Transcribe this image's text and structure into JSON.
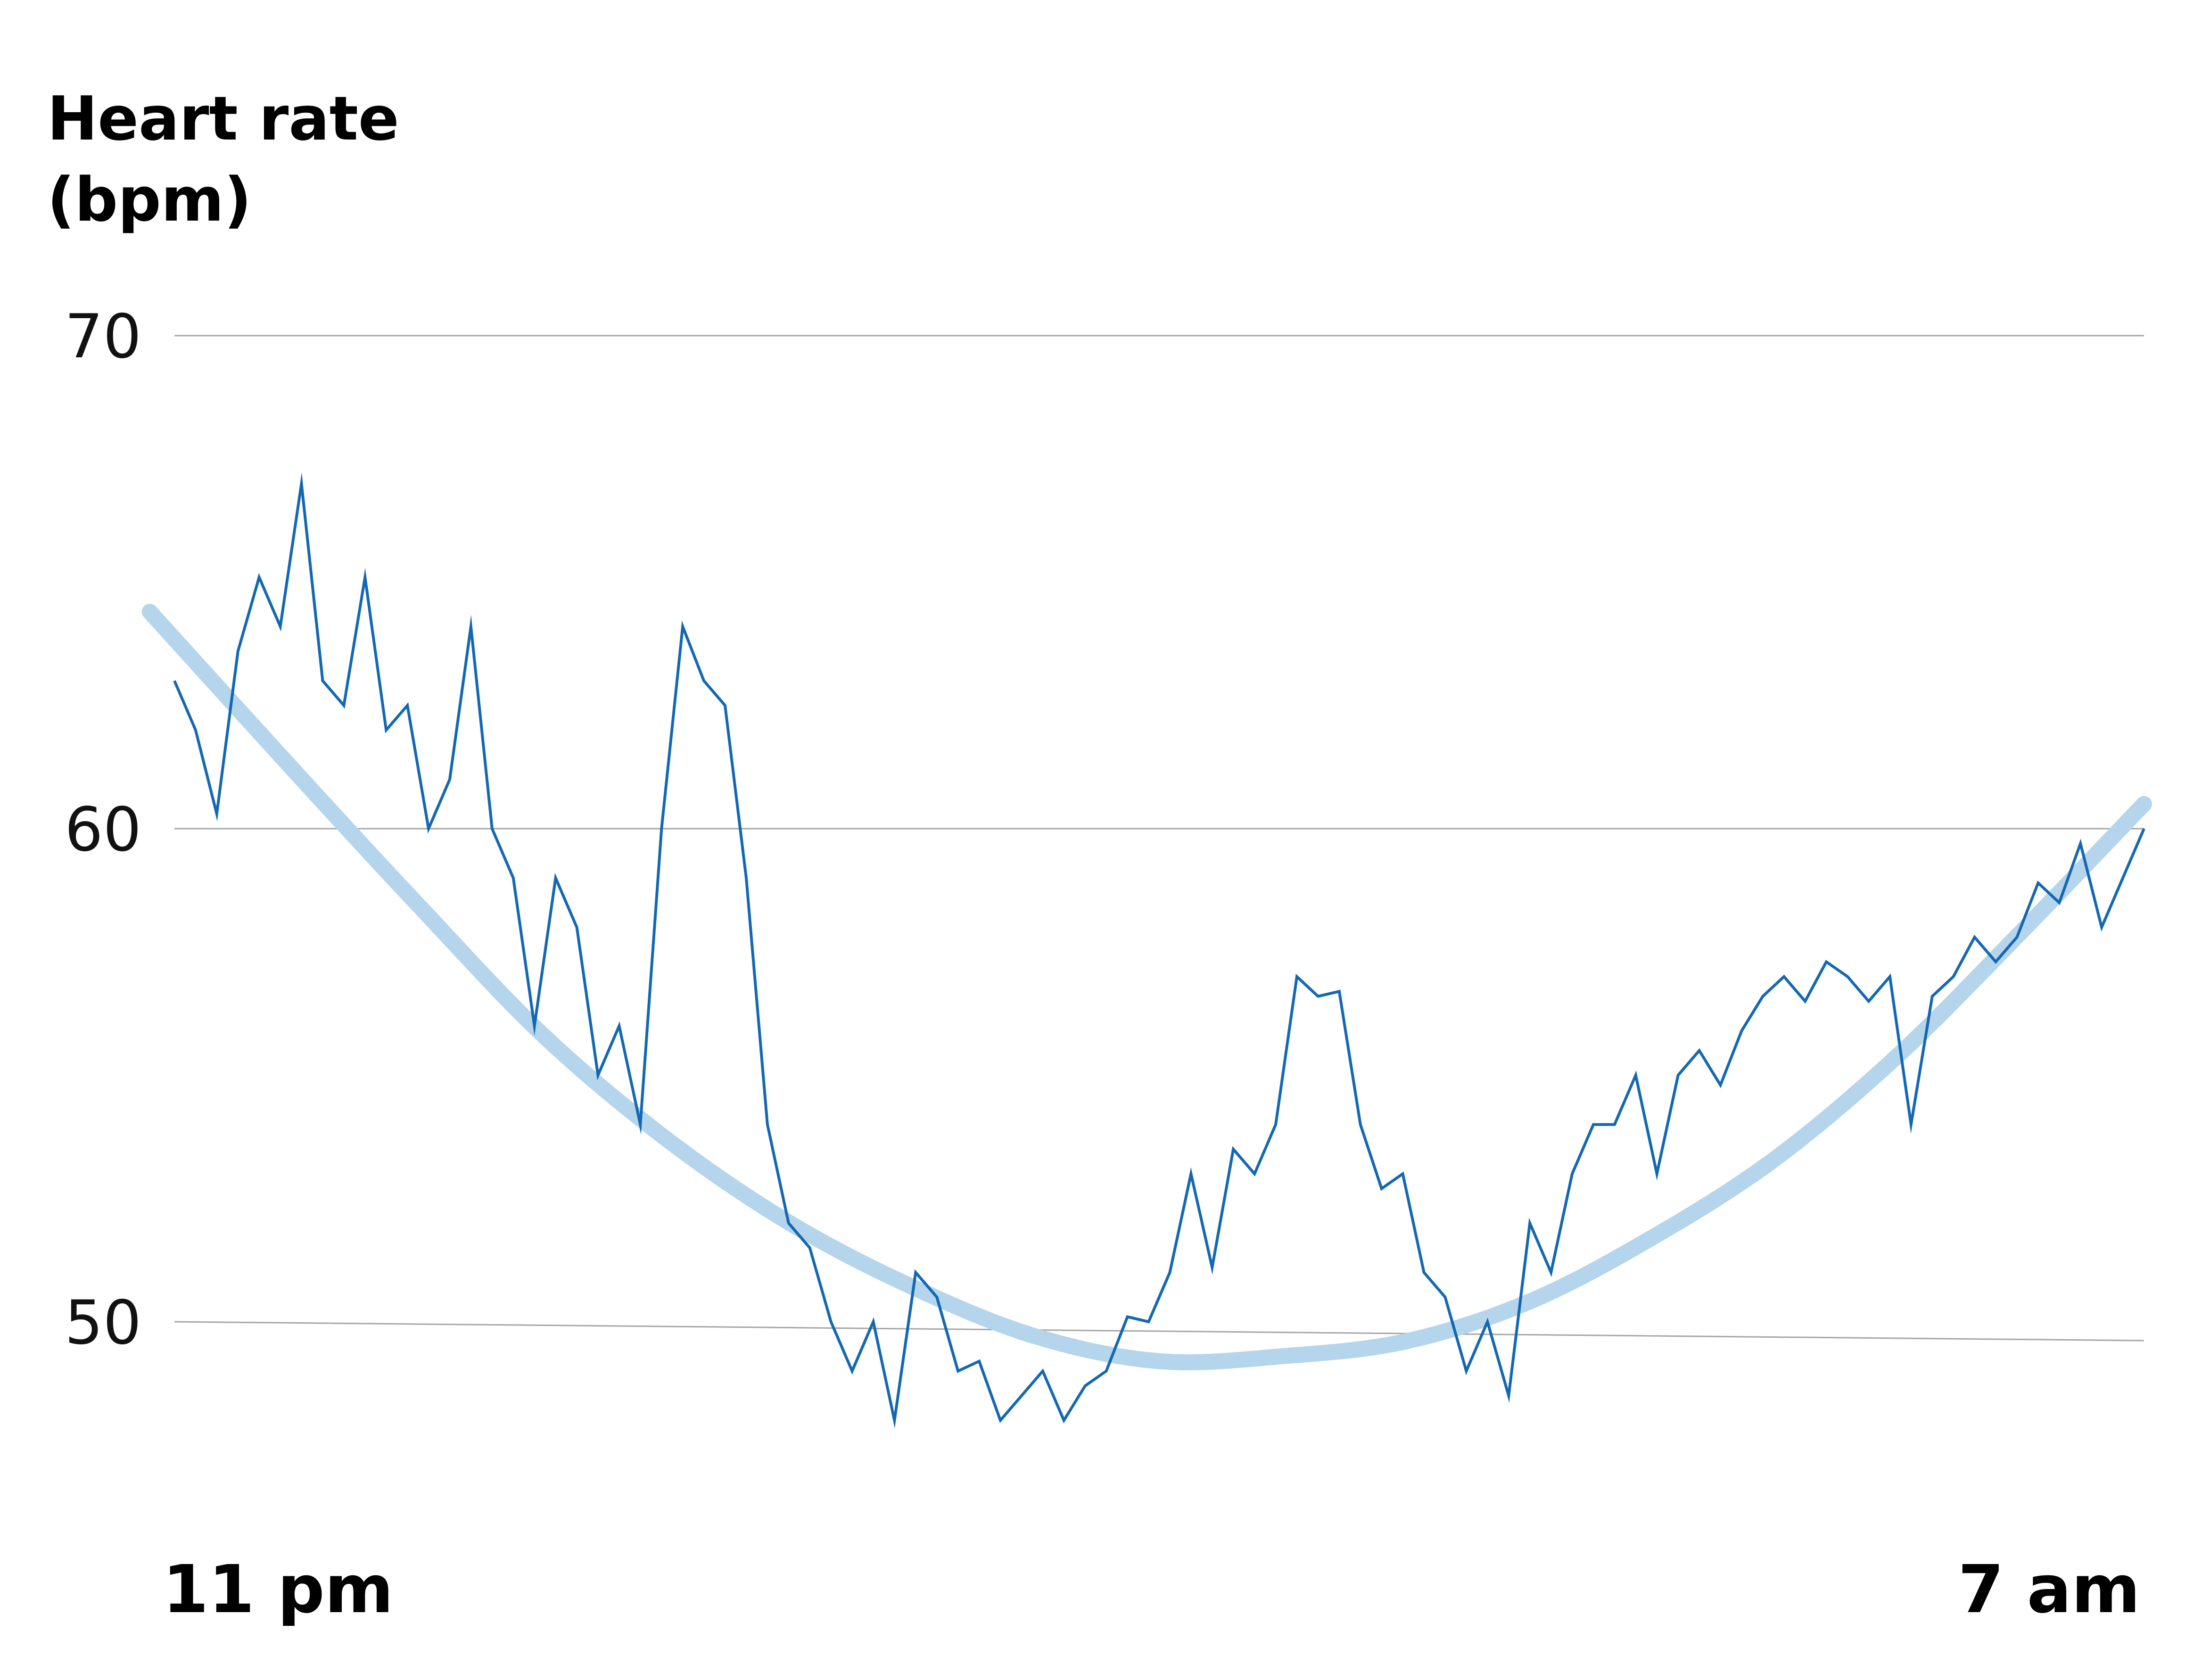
{
  "chart_data": {
    "type": "line",
    "title": "",
    "ylabel_lines": [
      "Heart rate",
      "(bpm)"
    ],
    "xlabel": "",
    "y_ticks": [
      50,
      60,
      70
    ],
    "ylim": [
      46,
      70
    ],
    "x_ticks": [
      {
        "x": 0,
        "label": "11 pm"
      },
      {
        "x": 8,
        "label": "7 am"
      }
    ],
    "xlim": [
      0,
      8
    ],
    "grid": true,
    "colors": {
      "measured": "#1368b4",
      "trend": "#b5d5ec",
      "grid": "#a6a6a6"
    },
    "series": [
      {
        "role": "measured",
        "x_start": 0,
        "x_end": 8,
        "values": [
          63,
          62,
          60.3,
          63.6,
          65.1,
          64.1,
          67,
          63,
          62.5,
          65.1,
          62,
          62.5,
          60,
          61,
          64.1,
          60,
          59,
          56,
          59,
          58,
          55,
          56,
          54,
          60,
          64.1,
          63,
          62.5,
          59,
          54,
          52,
          51.5,
          50,
          49,
          50,
          48,
          51,
          50.5,
          49,
          49.2,
          48,
          48.5,
          49,
          48,
          48.7,
          49,
          50.1,
          50,
          51,
          53,
          51.1,
          53.5,
          53,
          54,
          57,
          56.6,
          56.7,
          54,
          52.7,
          53,
          51,
          50.5,
          49,
          50,
          48.5,
          52,
          51,
          53,
          54,
          54,
          55,
          53,
          55,
          55.5,
          54.8,
          55.9,
          56.6,
          57,
          56.5,
          57.3,
          57,
          56.5,
          57,
          54,
          56.6,
          57,
          57.8,
          57.3,
          57.8,
          58.9,
          58.5,
          59.7,
          58,
          59,
          60
        ]
      },
      {
        "role": "trend",
        "x": [
          -0.1,
          0.5,
          1,
          1.5,
          2,
          2.5,
          3,
          3.5,
          4,
          4.5,
          5,
          5.5,
          6,
          6.5,
          7,
          7.5,
          8
        ],
        "values": [
          64.4,
          61.1,
          58.4,
          55.8,
          53.7,
          52,
          50.7,
          49.7,
          49.2,
          49.3,
          49.6,
          50.4,
          51.7,
          53.3,
          55.4,
          57.9,
          60.5
        ]
      }
    ]
  }
}
